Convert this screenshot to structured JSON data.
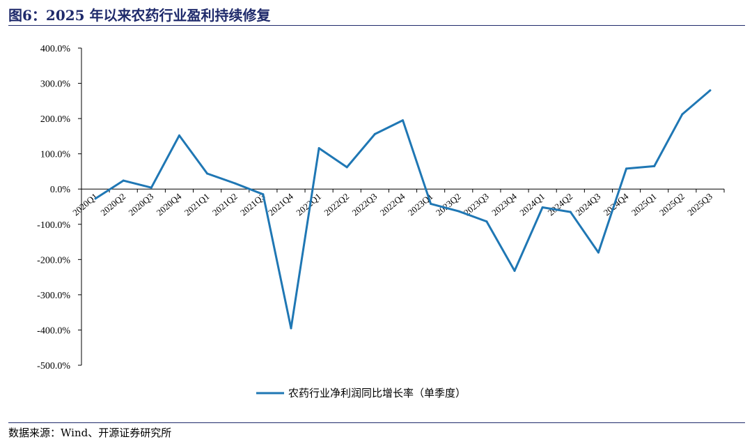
{
  "figure": {
    "title": "图6：2025 年以来农药行业盈利持续修复",
    "source": "数据来源：Wind、开源证券研究所"
  },
  "colors": {
    "series": "#1f77b4",
    "title": "#1f2a6b"
  },
  "chart_data": {
    "type": "line",
    "title": "",
    "xlabel": "",
    "ylabel": "",
    "x": [
      "2020Q1",
      "2020Q2",
      "2020Q3",
      "2020Q4",
      "2021Q1",
      "2021Q2",
      "2021Q3",
      "2021Q4",
      "2022Q1",
      "2022Q2",
      "2022Q3",
      "2022Q4",
      "2023Q1",
      "2023Q2",
      "2023Q3",
      "2023Q4",
      "2024Q1",
      "2024Q2",
      "2024Q3",
      "2024Q4",
      "2025Q1",
      "2025Q2",
      "2025Q3"
    ],
    "series": [
      {
        "name": "农药行业净利润同比增长率（单季度）",
        "values": [
          -27,
          24,
          4,
          152,
          44,
          16,
          -15,
          -395,
          116,
          62,
          156,
          195,
          -42,
          -63,
          -92,
          -232,
          -52,
          -65,
          -180,
          58,
          65,
          212,
          280
        ]
      }
    ],
    "ylim": [
      -500,
      400
    ],
    "yticks": [
      "-500.0%",
      "-400.0%",
      "-300.0%",
      "-200.0%",
      "-100.0%",
      "0.0%",
      "100.0%",
      "200.0%",
      "300.0%",
      "400.0%"
    ],
    "grid": false,
    "legend_position": "bottom"
  }
}
